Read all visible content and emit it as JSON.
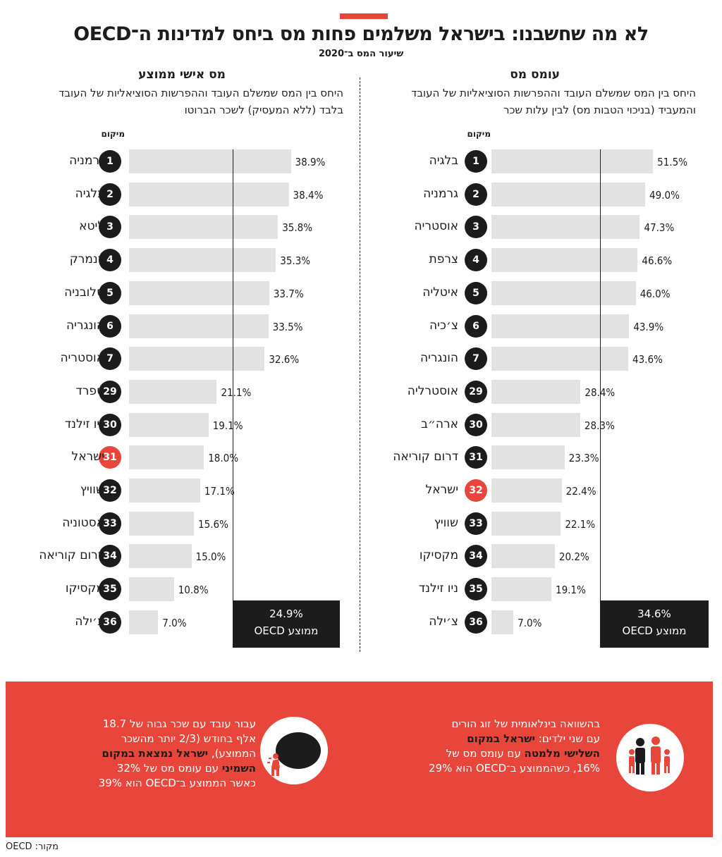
{
  "title": "לא מה שחשבנו: בישראל משלמים פחות מס ביחס למדינות ה־OECD",
  "subtitle": "שיעור המס ב־2020",
  "rank_label": "מיקום",
  "avg_label": "ממוצע OECD",
  "source": "מקור: OECD",
  "colors": {
    "accent": "#e8463b",
    "bar": "#e2e2e2",
    "dark": "#1c1c1c"
  },
  "left_panel": {
    "heading": "מס אישי ממוצע",
    "description_line1": "היחס בין המס שמשלם העובד וההפרשות הסוציאליות של העובד",
    "description_line2": "בלבד (ללא המעסיק) לשכר הברוטו"
  },
  "right_panel": {
    "heading": "עומס מס",
    "description_line1": "היחס בין המס שמשלם העובד וההפרשות הסוציאליות של העובד",
    "description_line2": "והמעביד (בניכוי הטבות מס) לבין עלות שכר"
  },
  "chart_data": [
    {
      "type": "bar",
      "title": "מס אישי ממוצע",
      "unit": "%",
      "oecd_average": 24.9,
      "oecd_average_label": "24.9%",
      "highlight_rank": 31,
      "ranks": [
        1,
        2,
        3,
        4,
        5,
        6,
        7,
        29,
        30,
        31,
        32,
        33,
        34,
        35,
        36
      ],
      "categories": [
        "גרמניה",
        "בלגיה",
        "ליטא",
        "דנמרק",
        "סלובניה",
        "הונגריה",
        "אוסטריה",
        "ספרד",
        "ניו זילנד",
        "ישראל",
        "שוויץ",
        "אסטוניה",
        "דרום קוריאה",
        "מקסיקו",
        "צ׳ילה"
      ],
      "values": [
        38.9,
        38.4,
        35.8,
        35.3,
        33.7,
        33.5,
        32.6,
        21.1,
        19.1,
        18.0,
        17.1,
        15.6,
        15.0,
        10.8,
        7.0
      ],
      "labels": [
        "38.9%",
        "38.4%",
        "35.8%",
        "35.3%",
        "33.7%",
        "33.5%",
        "32.6%",
        "21.1%",
        "19.1%",
        "18.0%",
        "17.1%",
        "15.6%",
        "15.0%",
        "10.8%",
        "7.0%"
      ]
    },
    {
      "type": "bar",
      "title": "עומס מס",
      "unit": "%",
      "oecd_average": 34.6,
      "oecd_average_label": "34.6%",
      "highlight_rank": 32,
      "ranks": [
        1,
        2,
        3,
        4,
        5,
        6,
        7,
        29,
        30,
        31,
        32,
        33,
        34,
        35,
        36
      ],
      "categories": [
        "בלגיה",
        "גרמניה",
        "אוסטריה",
        "צרפת",
        "איטליה",
        "צ׳כיה",
        "הונגריה",
        "אוסטרליה",
        "ארה״ב",
        "דרום קוריאה",
        "ישראל",
        "שוויץ",
        "מקסיקו",
        "ניו זילנד",
        "צ׳ילה"
      ],
      "values": [
        51.5,
        49.0,
        47.3,
        46.6,
        46.0,
        43.9,
        43.6,
        28.4,
        28.3,
        23.3,
        22.4,
        22.1,
        20.2,
        19.1,
        7.0
      ],
      "labels": [
        "51.5%",
        "49.0%",
        "47.3%",
        "46.6%",
        "46.0%",
        "43.9%",
        "43.6%",
        "28.4%",
        "28.3%",
        "23.3%",
        "22.4%",
        "22.1%",
        "20.2%",
        "19.1%",
        "7.0%"
      ]
    }
  ],
  "notes": {
    "family": {
      "line1": "בהשוואה בינלאומית של זוג הורים",
      "line2_a": "עם שני ילדים: ",
      "line2_b": "ישראל במקום",
      "line3_a": "השלישי מלמטה",
      "line3_b": " עם עומס מס של",
      "line4": "16%, כשהממוצע ב־OECD הוא 29%",
      "icon": "family-icon"
    },
    "high_wage": {
      "line1": "עבור עובד עם שכר גבוה של 18.7",
      "line2": "אלף בחודש (2/3 יותר מהשכר",
      "line3_a": "הממוצע), ",
      "line3_b": "ישראל נמצאת במקום",
      "line4_a": "השמיני",
      "line4_b": " עם עומס מס של 32%",
      "line5": "כאשר הממוצע ב־OECD הוא 39%",
      "icon": "burden-sack-icon"
    }
  }
}
